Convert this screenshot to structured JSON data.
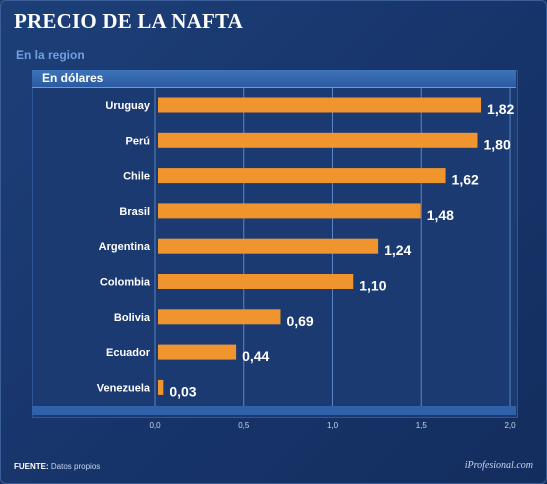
{
  "title": "PRECIO DE LA NAFTA",
  "subtitle": "En la region",
  "panel_label": "En dólares",
  "footer": {
    "source_label": "FUENTE:",
    "source_text": "Datos propios",
    "brand": "iProfesional.com"
  },
  "colors": {
    "bar": "#f0952e",
    "background": "#1b3a72",
    "grid": "#5a85c2",
    "text": "#ffffff"
  },
  "chart_data": {
    "type": "bar",
    "orientation": "horizontal",
    "categories": [
      "Uruguay",
      "Perú",
      "Chile",
      "Brasil",
      "Argentina",
      "Colombia",
      "Bolivia",
      "Ecuador",
      "Venezuela"
    ],
    "values": [
      1.82,
      1.8,
      1.62,
      1.48,
      1.24,
      1.1,
      0.69,
      0.44,
      0.03
    ],
    "value_labels": [
      "1,82",
      "1,80",
      "1,62",
      "1,48",
      "1,24",
      "1,10",
      "0,69",
      "0,44",
      "0,03"
    ],
    "xlim": [
      0,
      2.0
    ],
    "xticks": [
      0,
      0.5,
      1.0,
      1.5,
      2.0
    ],
    "xtick_labels": [
      "0,0",
      "0,5",
      "1,0",
      "1,5",
      "2,0"
    ],
    "grid": true,
    "title": "PRECIO DE LA NAFTA",
    "subtitle": "En la region",
    "xlabel": "",
    "ylabel": ""
  }
}
